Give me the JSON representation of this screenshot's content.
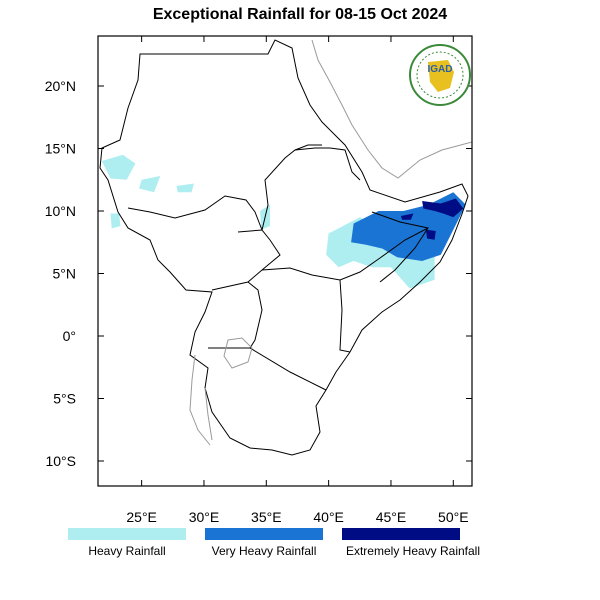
{
  "title": "Exceptional Rainfall for 08-15 Oct 2024",
  "logo": {
    "text": "IGAD",
    "colors": {
      "ring": "#3a8a3a",
      "land": "#e8c020",
      "text": "#2a5fa8"
    }
  },
  "axes": {
    "x": {
      "ticks": [
        25,
        30,
        35,
        40,
        45,
        50
      ],
      "labels": [
        "25°E",
        "30°E",
        "35°E",
        "40°E",
        "45°E",
        "50°E"
      ],
      "range": [
        21.5,
        51.5
      ]
    },
    "y": {
      "ticks": [
        20,
        15,
        10,
        5,
        0,
        -5,
        -10
      ],
      "labels": [
        "20°N",
        "15°N",
        "10°N",
        "5°N",
        "0°",
        "5°S",
        "10°S"
      ],
      "range": [
        -12,
        24
      ]
    }
  },
  "legend": [
    {
      "label": "Heavy Rainfall",
      "color": "#aeeef0"
    },
    {
      "label": "Very Heavy Rainfall",
      "color": "#1a74d4"
    },
    {
      "label": "Extremely Heavy Rainfall",
      "color": "#000c84"
    }
  ],
  "rainfall_areas": [
    {
      "category": "heavy",
      "points": [
        [
          21.8,
          14.0
        ],
        [
          23.5,
          14.5
        ],
        [
          24.5,
          13.8
        ],
        [
          23.8,
          12.5
        ],
        [
          22.5,
          12.6
        ]
      ]
    },
    {
      "category": "heavy",
      "points": [
        [
          25.0,
          12.5
        ],
        [
          26.5,
          12.8
        ],
        [
          26.0,
          11.5
        ],
        [
          24.8,
          11.8
        ]
      ]
    },
    {
      "category": "heavy",
      "points": [
        [
          27.8,
          12.0
        ],
        [
          29.2,
          12.2
        ],
        [
          29.0,
          11.5
        ],
        [
          27.9,
          11.5
        ]
      ]
    },
    {
      "category": "heavy",
      "points": [
        [
          22.5,
          9.8
        ],
        [
          23.2,
          9.8
        ],
        [
          23.3,
          8.8
        ],
        [
          22.6,
          8.6
        ]
      ]
    },
    {
      "category": "heavy",
      "points": [
        [
          34.5,
          10.0
        ],
        [
          35.3,
          10.5
        ],
        [
          35.3,
          8.8
        ],
        [
          34.6,
          8.5
        ]
      ]
    },
    {
      "category": "heavy",
      "points": [
        [
          40.0,
          8.2
        ],
        [
          42.5,
          9.5
        ],
        [
          44.5,
          8.5
        ],
        [
          46.0,
          6.5
        ],
        [
          48.5,
          6.5
        ],
        [
          48.5,
          4.5
        ],
        [
          46.5,
          3.8
        ],
        [
          45.0,
          5.5
        ],
        [
          43.5,
          5.5
        ],
        [
          42.0,
          6.0
        ],
        [
          40.8,
          5.5
        ],
        [
          39.8,
          6.5
        ]
      ]
    },
    {
      "category": "very_heavy",
      "points": [
        [
          42.0,
          9.0
        ],
        [
          44.0,
          10.0
        ],
        [
          46.0,
          10.0
        ],
        [
          48.0,
          10.5
        ],
        [
          50.0,
          11.5
        ],
        [
          51.0,
          10.5
        ],
        [
          50.0,
          8.5
        ],
        [
          49.0,
          6.5
        ],
        [
          47.5,
          6.0
        ],
        [
          45.5,
          6.3
        ],
        [
          44.3,
          7.0
        ],
        [
          43.0,
          7.3
        ],
        [
          41.8,
          7.5
        ]
      ]
    },
    {
      "category": "extremely_heavy",
      "points": [
        [
          47.5,
          10.8
        ],
        [
          49.0,
          10.6
        ],
        [
          50.2,
          11.0
        ],
        [
          50.8,
          10.2
        ],
        [
          50.0,
          9.5
        ],
        [
          49.2,
          9.8
        ],
        [
          48.5,
          10.0
        ],
        [
          47.6,
          10.2
        ]
      ]
    },
    {
      "category": "extremely_heavy",
      "points": [
        [
          45.8,
          9.6
        ],
        [
          46.8,
          9.8
        ],
        [
          46.6,
          9.3
        ],
        [
          45.9,
          9.3
        ]
      ]
    },
    {
      "category": "extremely_heavy",
      "points": [
        [
          47.8,
          8.5
        ],
        [
          48.6,
          8.4
        ],
        [
          48.5,
          7.7
        ],
        [
          47.9,
          7.8
        ]
      ]
    }
  ]
}
